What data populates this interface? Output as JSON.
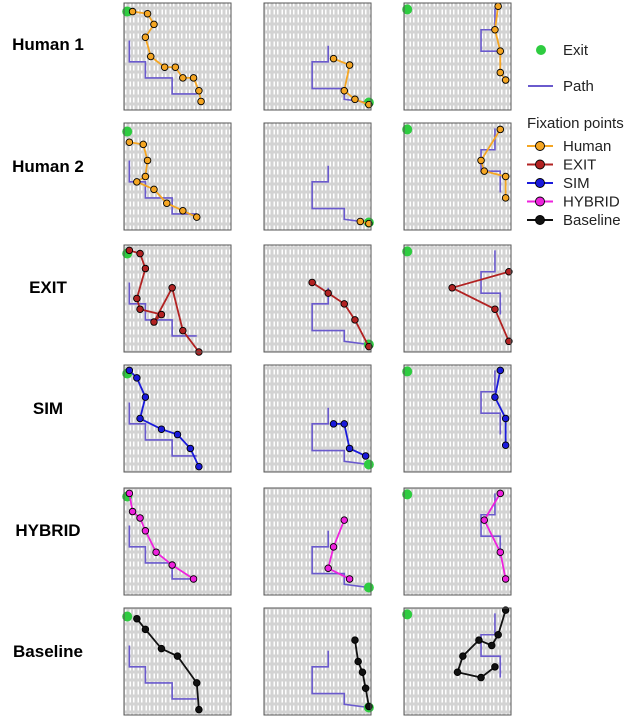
{
  "rows": [
    {
      "label": "Human 1",
      "color": "#f5a623"
    },
    {
      "label": "Human 2",
      "color": "#f5a623"
    },
    {
      "label": "EXIT",
      "color": "#b22222"
    },
    {
      "label": "SIM",
      "color": "#1a1adb"
    },
    {
      "label": "HYBRID",
      "color": "#ee22dd"
    },
    {
      "label": "Baseline",
      "color": "#111111"
    }
  ],
  "legend": {
    "exit": {
      "label": "Exit",
      "color": "#2ecc40"
    },
    "path": {
      "label": "Path",
      "color": "#6a5acd"
    },
    "fixation_title": "Fixation points",
    "items": [
      {
        "label": "Human",
        "color": "#f5a623"
      },
      {
        "label": "EXIT",
        "color": "#b22222"
      },
      {
        "label": "SIM",
        "color": "#1a1adb"
      },
      {
        "label": "HYBRID",
        "color": "#ee22dd"
      },
      {
        "label": "Baseline",
        "color": "#111111"
      }
    ]
  },
  "mazes": [
    {
      "exit": [
        0.03,
        0.08
      ],
      "path": [
        [
          0.05,
          0.35
        ],
        [
          0.05,
          0.55
        ],
        [
          0.2,
          0.55
        ],
        [
          0.2,
          0.7
        ],
        [
          0.45,
          0.7
        ],
        [
          0.45,
          0.85
        ],
        [
          0.68,
          0.85
        ]
      ]
    },
    {
      "exit": [
        0.98,
        0.93
      ],
      "path": [
        [
          0.6,
          0.4
        ],
        [
          0.6,
          0.55
        ],
        [
          0.45,
          0.55
        ],
        [
          0.45,
          0.8
        ],
        [
          0.75,
          0.8
        ],
        [
          0.75,
          0.9
        ],
        [
          0.98,
          0.93
        ]
      ]
    },
    {
      "exit": [
        0.03,
        0.06
      ],
      "path": [
        [
          0.85,
          0.05
        ],
        [
          0.85,
          0.25
        ],
        [
          0.72,
          0.25
        ],
        [
          0.72,
          0.45
        ],
        [
          0.9,
          0.45
        ],
        [
          0.9,
          0.65
        ]
      ]
    }
  ],
  "fixations": [
    [
      [
        [
          0.08,
          0.08
        ],
        [
          0.22,
          0.1
        ],
        [
          0.28,
          0.2
        ],
        [
          0.2,
          0.32
        ],
        [
          0.25,
          0.5
        ],
        [
          0.38,
          0.6
        ],
        [
          0.48,
          0.6
        ],
        [
          0.55,
          0.7
        ],
        [
          0.65,
          0.7
        ],
        [
          0.7,
          0.82
        ],
        [
          0.72,
          0.92
        ]
      ],
      [
        [
          0.65,
          0.52
        ],
        [
          0.8,
          0.58
        ],
        [
          0.75,
          0.82
        ],
        [
          0.85,
          0.9
        ],
        [
          0.98,
          0.95
        ]
      ],
      [
        [
          0.88,
          0.03
        ],
        [
          0.85,
          0.25
        ],
        [
          0.9,
          0.45
        ],
        [
          0.9,
          0.65
        ],
        [
          0.95,
          0.72
        ]
      ]
    ],
    [
      [
        [
          0.05,
          0.18
        ],
        [
          0.18,
          0.2
        ],
        [
          0.22,
          0.35
        ],
        [
          0.2,
          0.5
        ],
        [
          0.12,
          0.55
        ],
        [
          0.28,
          0.62
        ],
        [
          0.4,
          0.75
        ],
        [
          0.55,
          0.82
        ],
        [
          0.68,
          0.88
        ]
      ],
      [
        [
          0.9,
          0.92
        ],
        [
          0.98,
          0.94
        ]
      ],
      [
        [
          0.9,
          0.06
        ],
        [
          0.72,
          0.35
        ],
        [
          0.75,
          0.45
        ],
        [
          0.95,
          0.5
        ],
        [
          0.95,
          0.7
        ]
      ]
    ],
    [
      [
        [
          0.05,
          0.05
        ],
        [
          0.15,
          0.08
        ],
        [
          0.2,
          0.22
        ],
        [
          0.12,
          0.5
        ],
        [
          0.15,
          0.6
        ],
        [
          0.35,
          0.65
        ],
        [
          0.28,
          0.72
        ],
        [
          0.45,
          0.4
        ],
        [
          0.55,
          0.8
        ],
        [
          0.7,
          1.0
        ]
      ],
      [
        [
          0.45,
          0.35
        ],
        [
          0.6,
          0.45
        ],
        [
          0.75,
          0.55
        ],
        [
          0.85,
          0.7
        ],
        [
          0.98,
          0.95
        ]
      ],
      [
        [
          0.98,
          0.25
        ],
        [
          0.45,
          0.4
        ],
        [
          0.85,
          0.6
        ],
        [
          0.98,
          0.9
        ]
      ]
    ],
    [
      [
        [
          0.05,
          0.05
        ],
        [
          0.12,
          0.12
        ],
        [
          0.2,
          0.3
        ],
        [
          0.15,
          0.5
        ],
        [
          0.35,
          0.6
        ],
        [
          0.5,
          0.65
        ],
        [
          0.62,
          0.78
        ],
        [
          0.7,
          0.95
        ]
      ],
      [
        [
          0.65,
          0.55
        ],
        [
          0.75,
          0.55
        ],
        [
          0.8,
          0.78
        ],
        [
          0.95,
          0.85
        ]
      ],
      [
        [
          0.9,
          0.05
        ],
        [
          0.85,
          0.3
        ],
        [
          0.95,
          0.5
        ],
        [
          0.95,
          0.75
        ]
      ]
    ],
    [
      [
        [
          0.05,
          0.05
        ],
        [
          0.08,
          0.22
        ],
        [
          0.15,
          0.28
        ],
        [
          0.2,
          0.4
        ],
        [
          0.3,
          0.6
        ],
        [
          0.45,
          0.72
        ],
        [
          0.65,
          0.85
        ]
      ],
      [
        [
          0.75,
          0.3
        ],
        [
          0.65,
          0.55
        ],
        [
          0.6,
          0.75
        ],
        [
          0.8,
          0.85
        ]
      ],
      [
        [
          0.9,
          0.05
        ],
        [
          0.75,
          0.3
        ],
        [
          0.9,
          0.6
        ],
        [
          0.95,
          0.85
        ]
      ]
    ],
    [
      [
        [
          0.12,
          0.1
        ],
        [
          0.2,
          0.2
        ],
        [
          0.35,
          0.38
        ],
        [
          0.5,
          0.45
        ],
        [
          0.68,
          0.7
        ],
        [
          0.7,
          0.95
        ]
      ],
      [
        [
          0.85,
          0.3
        ],
        [
          0.88,
          0.5
        ],
        [
          0.92,
          0.6
        ],
        [
          0.95,
          0.75
        ],
        [
          0.98,
          0.92
        ]
      ],
      [
        [
          0.95,
          0.02
        ],
        [
          0.88,
          0.25
        ],
        [
          0.82,
          0.35
        ],
        [
          0.7,
          0.3
        ],
        [
          0.55,
          0.45
        ],
        [
          0.5,
          0.6
        ],
        [
          0.72,
          0.65
        ],
        [
          0.85,
          0.55
        ]
      ]
    ]
  ]
}
